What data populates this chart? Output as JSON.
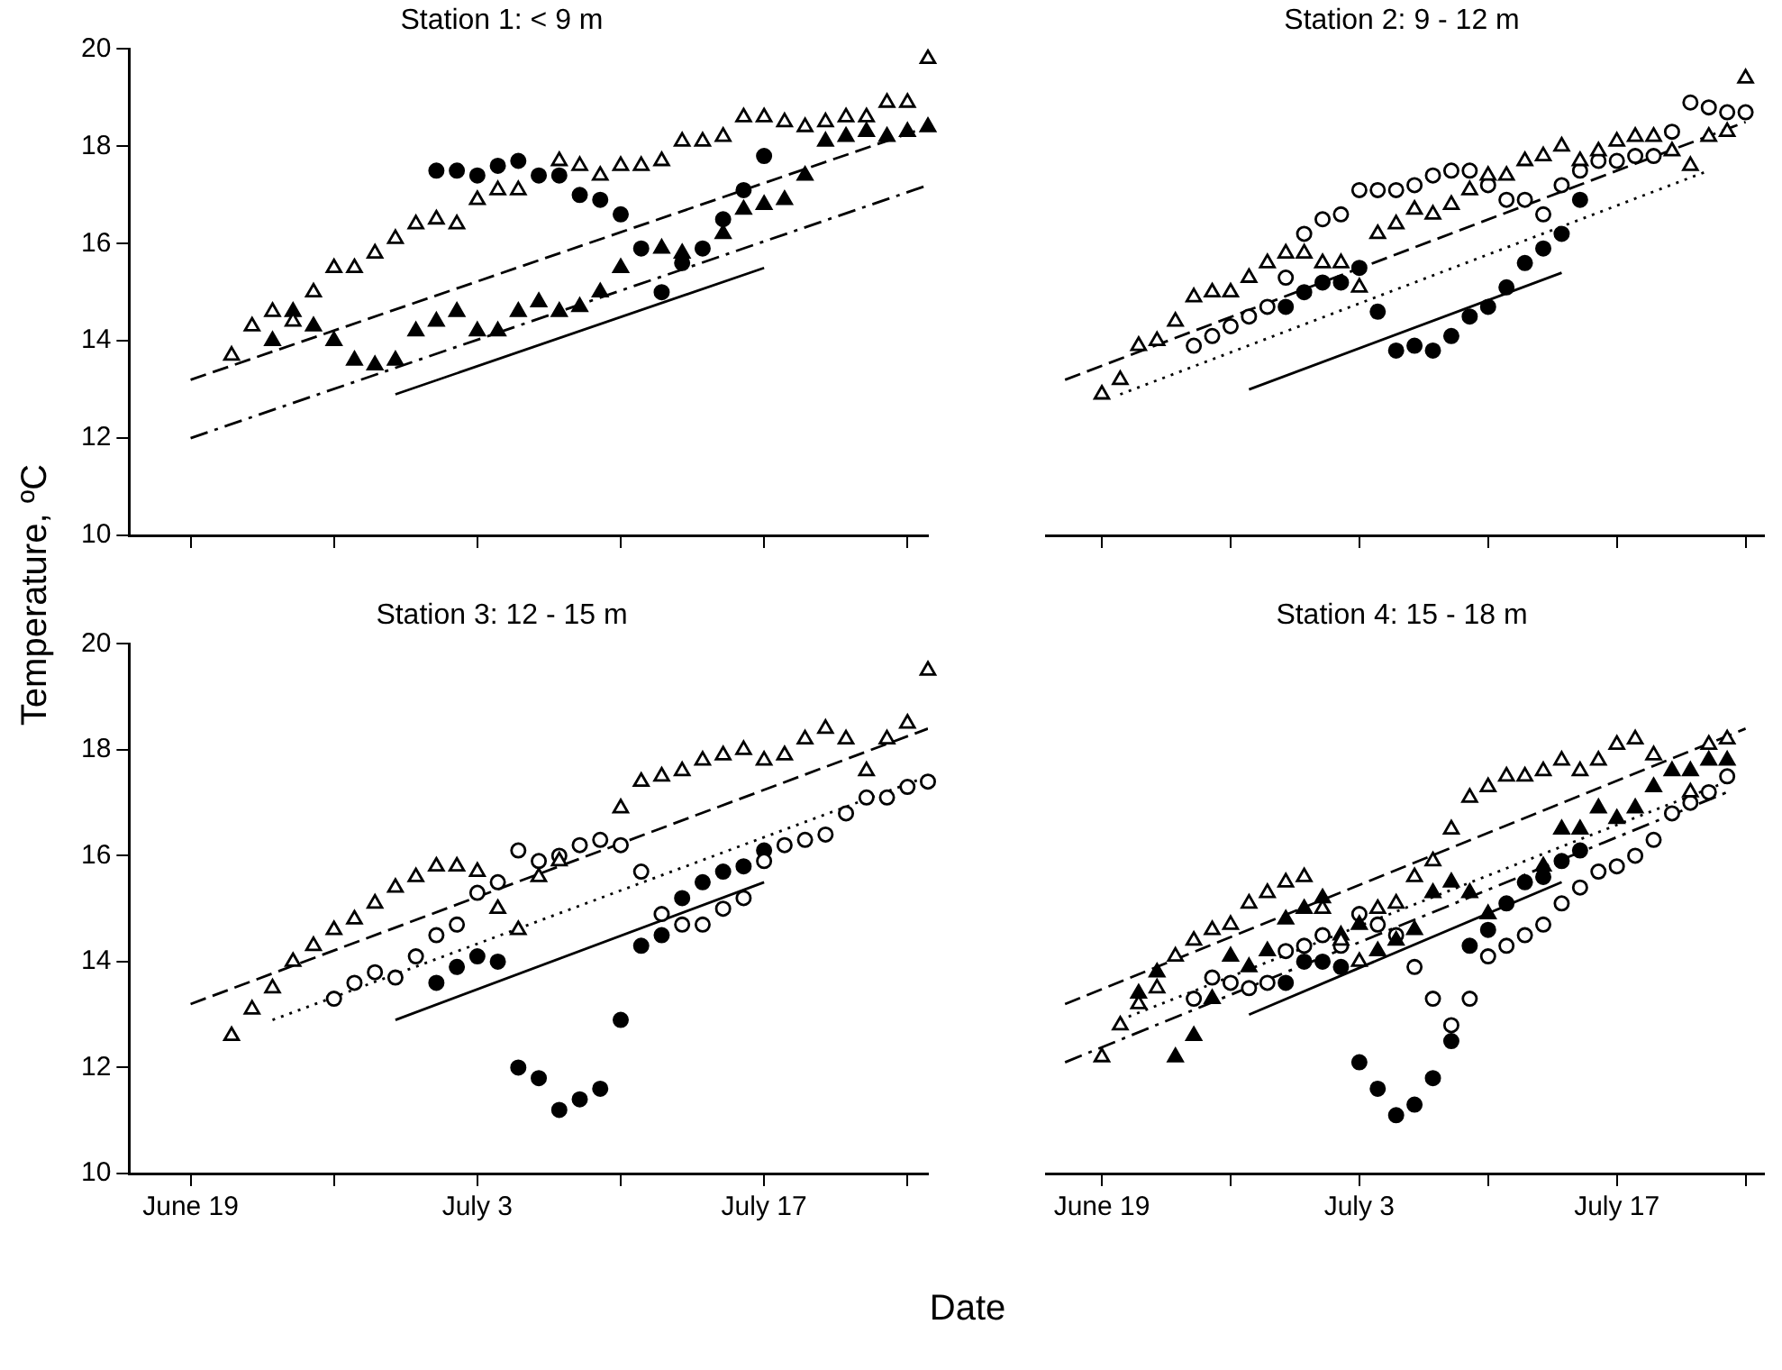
{
  "chart_data": [
    {
      "type": "scatter",
      "title": "Station 1: < 9 m",
      "ylabel": "Temperature, ºC",
      "tick_labels": "y",
      "x": [
        "--06-21",
        "--06-22",
        "--06-23",
        "--06-24",
        "--06-25",
        "--06-26",
        "--06-27",
        "--06-28",
        "--06-29",
        "--06-30",
        "--07-01",
        "--07-02",
        "--07-03",
        "--07-04",
        "--07-05",
        "--07-06",
        "--07-07",
        "--07-08",
        "--07-09",
        "--07-10",
        "--07-11",
        "--07-12",
        "--07-13",
        "--07-14",
        "--07-15",
        "--07-16",
        "--07-17",
        "--07-18",
        "--07-19",
        "--07-20",
        "--07-21",
        "--07-22",
        "--07-23",
        "--07-24",
        "--07-25"
      ],
      "xlim": [
        "--06-16",
        "--07-25"
      ],
      "xticks": [
        {
          "value": "--06-19",
          "label": null
        },
        {
          "value": "--06-26",
          "label": null
        },
        {
          "value": "--07-03",
          "label": null
        },
        {
          "value": "--07-10",
          "label": null
        },
        {
          "value": "--07-17",
          "label": null
        },
        {
          "value": "--07-24",
          "label": null
        }
      ],
      "ylim": [
        10,
        20
      ],
      "yticks": [
        10,
        12,
        14,
        16,
        18,
        20
      ],
      "series": [
        {
          "type": "line",
          "color": "#000000",
          "marker": "none",
          "line_style": "dashed",
          "x": [
            "--06-19",
            "--07-25"
          ],
          "values": [
            13.2,
            18.4
          ]
        },
        {
          "type": "line",
          "color": "#000000",
          "marker": "none",
          "line_style": "dashdot",
          "x": [
            "--06-19",
            "--07-25"
          ],
          "values": [
            12.0,
            17.2
          ]
        },
        {
          "type": "line",
          "color": "#000000",
          "marker": "none",
          "line_style": "solid",
          "x": [
            "--06-29",
            "--07-17"
          ],
          "values": [
            12.9,
            15.5
          ]
        },
        {
          "color": "#ffffff",
          "marker": "triangle",
          "values": [
            13.7,
            14.3,
            14.6,
            14.4,
            15.0,
            15.5,
            15.5,
            15.8,
            16.1,
            16.4,
            16.5,
            16.4,
            16.9,
            17.1,
            17.1,
            null,
            17.7,
            17.6,
            17.4,
            17.6,
            17.6,
            17.7,
            18.1,
            18.1,
            18.2,
            18.6,
            18.6,
            18.5,
            18.4,
            18.5,
            18.6,
            18.6,
            18.9,
            18.9,
            19.8
          ]
        },
        {
          "color": "#000000",
          "marker": "triangle",
          "values": [
            null,
            null,
            14.0,
            14.6,
            14.3,
            14.0,
            13.6,
            13.5,
            13.6,
            14.2,
            14.4,
            14.6,
            14.2,
            14.2,
            14.6,
            14.8,
            14.6,
            14.7,
            15.0,
            15.5,
            null,
            15.9,
            15.8,
            null,
            16.2,
            16.7,
            16.8,
            16.9,
            17.4,
            18.1,
            18.2,
            18.3,
            18.2,
            18.3,
            18.4
          ]
        },
        {
          "color": "#000000",
          "marker": "circle",
          "values": [
            null,
            null,
            null,
            null,
            null,
            null,
            null,
            null,
            null,
            null,
            17.5,
            17.5,
            17.4,
            17.6,
            17.7,
            17.4,
            17.4,
            17.0,
            16.9,
            16.6,
            15.9,
            15.0,
            15.6,
            15.9,
            16.5,
            17.1,
            17.8,
            null,
            null,
            null,
            null,
            null,
            null,
            null,
            null
          ]
        }
      ]
    },
    {
      "type": "scatter",
      "title": "Station 2: 9 - 12 m",
      "tick_labels": false,
      "x": [
        "--06-19",
        "--06-20",
        "--06-21",
        "--06-22",
        "--06-23",
        "--06-24",
        "--06-25",
        "--06-26",
        "--06-27",
        "--06-28",
        "--06-29",
        "--06-30",
        "--07-01",
        "--07-02",
        "--07-03",
        "--07-04",
        "--07-05",
        "--07-06",
        "--07-07",
        "--07-08",
        "--07-09",
        "--07-10",
        "--07-11",
        "--07-12",
        "--07-13",
        "--07-14",
        "--07-15",
        "--07-16",
        "--07-17",
        "--07-18",
        "--07-19",
        "--07-20",
        "--07-21",
        "--07-22",
        "--07-23",
        "--07-24"
      ],
      "xlim": [
        "--06-16",
        "--07-25"
      ],
      "xticks": [
        {
          "value": "--06-19",
          "label": null
        },
        {
          "value": "--06-26",
          "label": null
        },
        {
          "value": "--07-03",
          "label": null
        },
        {
          "value": "--07-10",
          "label": null
        },
        {
          "value": "--07-17",
          "label": null
        },
        {
          "value": "--07-24",
          "label": null
        }
      ],
      "ylim": [
        10,
        20
      ],
      "yticks": [
        10,
        12,
        14,
        16,
        18,
        20
      ],
      "series": [
        {
          "type": "line",
          "color": "#000000",
          "marker": "none",
          "line_style": "dashed",
          "x": [
            "--06-17",
            "--07-24"
          ],
          "values": [
            13.2,
            18.5
          ]
        },
        {
          "type": "line",
          "color": "#000000",
          "marker": "none",
          "line_style": "dotted",
          "x": [
            "--06-20",
            "--07-22"
          ],
          "values": [
            12.9,
            17.5
          ]
        },
        {
          "type": "line",
          "color": "#000000",
          "marker": "none",
          "line_style": "solid",
          "x": [
            "--06-27",
            "--07-14"
          ],
          "values": [
            13.0,
            15.4
          ]
        },
        {
          "color": "#ffffff",
          "marker": "triangle",
          "values": [
            12.9,
            13.2,
            13.9,
            14.0,
            14.4,
            14.9,
            15.0,
            15.0,
            15.3,
            15.6,
            15.8,
            15.8,
            15.6,
            15.6,
            15.1,
            16.2,
            16.4,
            16.7,
            16.6,
            16.8,
            17.1,
            17.4,
            17.4,
            17.7,
            17.8,
            18.0,
            17.7,
            17.9,
            18.1,
            18.2,
            18.2,
            17.9,
            17.6,
            18.2,
            18.3,
            19.4
          ]
        },
        {
          "color": "#ffffff",
          "marker": "circle",
          "values": [
            null,
            null,
            null,
            null,
            null,
            13.9,
            14.1,
            14.3,
            14.5,
            14.7,
            15.3,
            16.2,
            16.5,
            16.6,
            17.1,
            17.1,
            17.1,
            17.2,
            17.4,
            17.5,
            17.5,
            17.2,
            16.9,
            16.9,
            16.6,
            17.2,
            17.5,
            17.7,
            17.7,
            17.8,
            17.8,
            18.3,
            18.9,
            18.8,
            18.7,
            18.7
          ]
        },
        {
          "color": "#000000",
          "marker": "circle",
          "values": [
            null,
            null,
            null,
            null,
            null,
            null,
            null,
            null,
            null,
            null,
            14.7,
            15.0,
            15.2,
            15.2,
            15.5,
            14.6,
            13.8,
            13.9,
            13.8,
            14.1,
            14.5,
            14.7,
            15.1,
            15.6,
            15.9,
            16.2,
            16.9,
            null,
            null,
            null,
            null,
            null,
            null,
            null,
            null,
            null
          ]
        }
      ]
    },
    {
      "type": "scatter",
      "title": "Station 3: 12 - 15 m",
      "xlabel": "Date",
      "x": [
        "--06-21",
        "--06-22",
        "--06-23",
        "--06-24",
        "--06-25",
        "--06-26",
        "--06-27",
        "--06-28",
        "--06-29",
        "--06-30",
        "--07-01",
        "--07-02",
        "--07-03",
        "--07-04",
        "--07-05",
        "--07-06",
        "--07-07",
        "--07-08",
        "--07-09",
        "--07-10",
        "--07-11",
        "--07-12",
        "--07-13",
        "--07-14",
        "--07-15",
        "--07-16",
        "--07-17",
        "--07-18",
        "--07-19",
        "--07-20",
        "--07-21",
        "--07-22",
        "--07-23",
        "--07-24",
        "--07-25"
      ],
      "xlim": [
        "--06-16",
        "--07-25"
      ],
      "xticks": [
        {
          "value": "--06-19",
          "label": "June 19"
        },
        {
          "value": "--06-26",
          "label": null
        },
        {
          "value": "--07-03",
          "label": "July 3"
        },
        {
          "value": "--07-10",
          "label": null
        },
        {
          "value": "--07-17",
          "label": "July 17"
        },
        {
          "value": "--07-24",
          "label": null
        }
      ],
      "ylim": [
        10,
        20
      ],
      "yticks": [
        10,
        12,
        14,
        16,
        18,
        20
      ],
      "series": [
        {
          "type": "line",
          "color": "#000000",
          "marker": "none",
          "line_style": "dashed",
          "x": [
            "--06-19",
            "--07-25"
          ],
          "values": [
            13.2,
            18.4
          ]
        },
        {
          "type": "line",
          "color": "#000000",
          "marker": "none",
          "line_style": "dotted",
          "x": [
            "--06-23",
            "--07-25"
          ],
          "values": [
            12.9,
            17.5
          ]
        },
        {
          "type": "line",
          "color": "#000000",
          "marker": "none",
          "line_style": "solid",
          "x": [
            "--06-29",
            "--07-17"
          ],
          "values": [
            12.9,
            15.5
          ]
        },
        {
          "color": "#ffffff",
          "marker": "triangle",
          "values": [
            12.6,
            13.1,
            13.5,
            14.0,
            14.3,
            14.6,
            14.8,
            15.1,
            15.4,
            15.6,
            15.8,
            15.8,
            15.7,
            15.0,
            14.6,
            15.6,
            15.9,
            null,
            null,
            16.9,
            17.4,
            17.5,
            17.6,
            17.8,
            17.9,
            18.0,
            17.8,
            17.9,
            18.2,
            18.4,
            18.2,
            17.6,
            18.2,
            18.5,
            19.5
          ]
        },
        {
          "color": "#ffffff",
          "marker": "circle",
          "values": [
            null,
            null,
            null,
            null,
            null,
            13.3,
            13.6,
            13.8,
            13.7,
            14.1,
            14.5,
            14.7,
            15.3,
            15.5,
            16.1,
            15.9,
            16.0,
            16.2,
            16.3,
            16.2,
            15.7,
            14.9,
            14.7,
            14.7,
            15.0,
            15.2,
            15.9,
            16.2,
            16.3,
            16.4,
            16.8,
            17.1,
            17.1,
            17.3,
            17.4
          ]
        },
        {
          "color": "#000000",
          "marker": "circle",
          "values": [
            null,
            null,
            null,
            null,
            null,
            null,
            null,
            null,
            null,
            null,
            13.6,
            13.9,
            14.1,
            14.0,
            12.0,
            11.8,
            11.2,
            11.4,
            11.6,
            12.9,
            14.3,
            14.5,
            15.2,
            15.5,
            15.7,
            15.8,
            16.1,
            null,
            null,
            null,
            null,
            null,
            null,
            null,
            null
          ]
        }
      ]
    },
    {
      "type": "scatter",
      "title": "Station 4: 15 - 18 m",
      "tick_labels": "x",
      "x": [
        "--06-19",
        "--06-20",
        "--06-21",
        "--06-22",
        "--06-23",
        "--06-24",
        "--06-25",
        "--06-26",
        "--06-27",
        "--06-28",
        "--06-29",
        "--06-30",
        "--07-01",
        "--07-02",
        "--07-03",
        "--07-04",
        "--07-05",
        "--07-06",
        "--07-07",
        "--07-08",
        "--07-09",
        "--07-10",
        "--07-11",
        "--07-12",
        "--07-13",
        "--07-14",
        "--07-15",
        "--07-16",
        "--07-17",
        "--07-18",
        "--07-19",
        "--07-20",
        "--07-21",
        "--07-22",
        "--07-23"
      ],
      "xlim": [
        "--06-16",
        "--07-25"
      ],
      "xticks": [
        {
          "value": "--06-19",
          "label": "June 19"
        },
        {
          "value": "--06-26",
          "label": null
        },
        {
          "value": "--07-03",
          "label": "July 3"
        },
        {
          "value": "--07-10",
          "label": null
        },
        {
          "value": "--07-17",
          "label": "July 17"
        },
        {
          "value": "--07-24",
          "label": null
        }
      ],
      "ylim": [
        10,
        20
      ],
      "yticks": [
        10,
        12,
        14,
        16,
        18,
        20
      ],
      "series": [
        {
          "type": "line",
          "color": "#000000",
          "marker": "none",
          "line_style": "dashed",
          "x": [
            "--06-17",
            "--07-24"
          ],
          "values": [
            13.2,
            18.4
          ]
        },
        {
          "type": "line",
          "color": "#000000",
          "marker": "none",
          "line_style": "dotted",
          "x": [
            "--06-20",
            "--07-23"
          ],
          "values": [
            12.9,
            17.4
          ]
        },
        {
          "type": "line",
          "color": "#000000",
          "marker": "none",
          "line_style": "dashdot",
          "x": [
            "--06-17",
            "--07-23"
          ],
          "values": [
            12.1,
            17.2
          ]
        },
        {
          "type": "line",
          "color": "#000000",
          "marker": "none",
          "line_style": "solid",
          "x": [
            "--06-27",
            "--07-14"
          ],
          "values": [
            13.0,
            15.5
          ]
        },
        {
          "color": "#ffffff",
          "marker": "triangle",
          "values": [
            12.2,
            12.8,
            13.2,
            13.5,
            14.1,
            14.4,
            14.6,
            14.7,
            15.1,
            15.3,
            15.5,
            15.6,
            15.0,
            14.4,
            14.0,
            15.0,
            15.1,
            15.6,
            15.9,
            16.5,
            17.1,
            17.3,
            17.5,
            17.5,
            17.6,
            17.8,
            17.6,
            17.8,
            18.1,
            18.2,
            17.9,
            null,
            17.2,
            18.1,
            18.2
          ]
        },
        {
          "color": "#000000",
          "marker": "triangle",
          "values": [
            null,
            null,
            13.4,
            13.8,
            12.2,
            12.6,
            13.3,
            14.1,
            13.9,
            14.2,
            14.8,
            15.0,
            15.2,
            14.5,
            14.7,
            14.2,
            14.4,
            14.6,
            15.3,
            15.5,
            15.3,
            14.9,
            null,
            null,
            15.8,
            16.5,
            16.5,
            16.9,
            16.7,
            16.9,
            17.3,
            17.6,
            17.6,
            17.8,
            17.8
          ]
        },
        {
          "color": "#ffffff",
          "marker": "circle",
          "values": [
            null,
            null,
            null,
            null,
            null,
            13.3,
            13.7,
            13.6,
            13.5,
            13.6,
            14.2,
            14.3,
            14.5,
            14.3,
            14.9,
            14.7,
            14.5,
            13.9,
            13.3,
            12.8,
            13.3,
            14.1,
            14.3,
            14.5,
            14.7,
            15.1,
            15.4,
            15.7,
            15.8,
            16.0,
            16.3,
            16.8,
            17.0,
            17.2,
            17.5
          ]
        },
        {
          "color": "#000000",
          "marker": "circle",
          "values": [
            null,
            null,
            null,
            null,
            null,
            null,
            null,
            null,
            null,
            null,
            13.6,
            14.0,
            14.0,
            13.9,
            12.1,
            11.6,
            11.1,
            11.3,
            11.8,
            12.5,
            14.3,
            14.6,
            15.1,
            15.5,
            15.6,
            15.9,
            16.1,
            null,
            null,
            null,
            null,
            null,
            null,
            null,
            null
          ]
        }
      ]
    }
  ]
}
